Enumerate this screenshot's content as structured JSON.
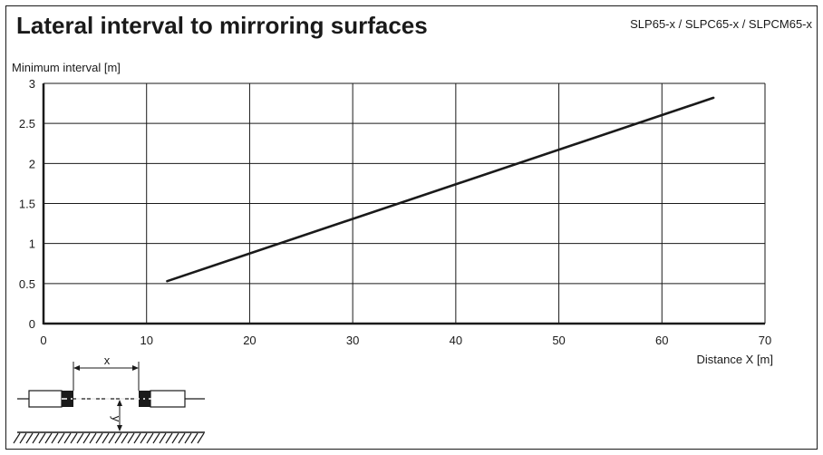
{
  "title": "Lateral interval to mirroring surfaces",
  "subtitle": "SLP65-x / SLPC65-x / SLPCM65-x",
  "chart_data": {
    "type": "line",
    "ylabel": "Minimum interval [m]",
    "xlabel": "Distance X [m]",
    "xlim": [
      0,
      70
    ],
    "ylim": [
      0,
      3
    ],
    "x_ticks": [
      "0",
      "10",
      "20",
      "30",
      "40",
      "50",
      "60",
      "70"
    ],
    "y_ticks": [
      "0",
      "0.5",
      "1",
      "1.5",
      "2",
      "2.5",
      "3"
    ],
    "grid": true,
    "series": [
      {
        "x": [
          12,
          65
        ],
        "y": [
          0.53,
          2.82
        ]
      }
    ]
  },
  "diagram": {
    "x_label": "x",
    "y_label": "y"
  },
  "colors": {
    "line": "#1a1a1a",
    "grid": "#1a1a1a"
  }
}
